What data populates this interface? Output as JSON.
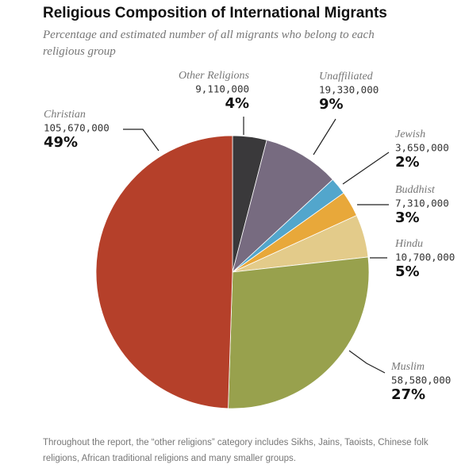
{
  "chart_data": {
    "type": "pie",
    "title": "Religious Composition of International Migrants",
    "subtitle": "Percentage and estimated number of all migrants who belong to each religious group",
    "categories": [
      "Other Religions",
      "Unaffiliated",
      "Jewish",
      "Buddhist",
      "Hindu",
      "Muslim",
      "Christian"
    ],
    "values": [
      4,
      9,
      2,
      3,
      5,
      27,
      49
    ],
    "value_labels": [
      "4%",
      "9%",
      "2%",
      "3%",
      "5%",
      "27%",
      "49%"
    ],
    "counts": [
      9110000,
      19330000,
      3650000,
      7310000,
      10700000,
      58580000,
      105670000
    ],
    "count_labels": [
      "9,110,000",
      "19,330,000",
      "3,650,000",
      "7,310,000",
      "10,700,000",
      "58,580,000",
      "105,670,000"
    ],
    "colors": [
      "#3a393b",
      "#776b80",
      "#52a6cc",
      "#e8a83a",
      "#e3cb8a",
      "#98a14d",
      "#b5402a"
    ],
    "note": "Throughout the report, the “other religions” category includes Sikhs, Jains, Taoists, Chinese folk religions, African traditional religions and many smaller groups."
  }
}
